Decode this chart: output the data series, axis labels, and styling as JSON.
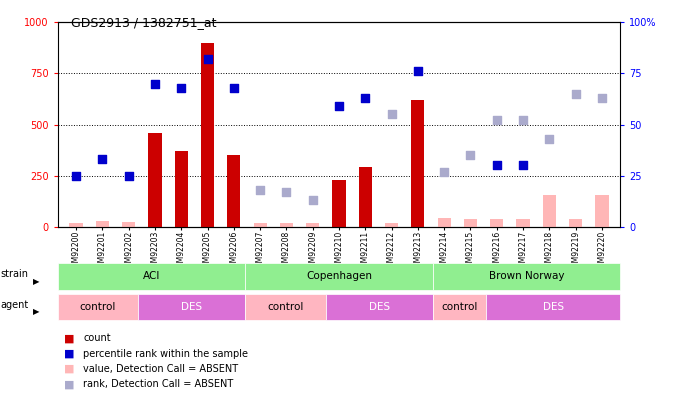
{
  "title": "GDS2913 / 1382751_at",
  "samples": [
    "GSM92200",
    "GSM92201",
    "GSM92202",
    "GSM92203",
    "GSM92204",
    "GSM92205",
    "GSM92206",
    "GSM92207",
    "GSM92208",
    "GSM92209",
    "GSM92210",
    "GSM92211",
    "GSM92212",
    "GSM92213",
    "GSM92214",
    "GSM92215",
    "GSM92216",
    "GSM92217",
    "GSM92218",
    "GSM92219",
    "GSM92220"
  ],
  "count_values": [
    20,
    30,
    25,
    460,
    370,
    900,
    350,
    20,
    20,
    20,
    230,
    290,
    20,
    620,
    45,
    40,
    40,
    40,
    155,
    40,
    155
  ],
  "count_absent": [
    true,
    true,
    true,
    false,
    false,
    false,
    false,
    true,
    true,
    true,
    false,
    false,
    true,
    false,
    true,
    true,
    true,
    true,
    true,
    true,
    true
  ],
  "percentile_values": [
    25,
    33,
    25,
    70,
    68,
    82,
    68,
    null,
    17,
    null,
    59,
    63,
    null,
    76,
    null,
    null,
    30,
    30,
    null,
    null,
    null
  ],
  "percentile_absent": [
    false,
    false,
    false,
    false,
    false,
    false,
    false,
    true,
    true,
    true,
    false,
    false,
    true,
    false,
    true,
    true,
    false,
    false,
    true,
    true,
    true
  ],
  "rank_absent_values": [
    null,
    null,
    null,
    null,
    null,
    null,
    null,
    18,
    null,
    13,
    null,
    null,
    55,
    null,
    27,
    35,
    52,
    52,
    43,
    65,
    63
  ],
  "ylim_left": [
    0,
    1000
  ],
  "ylim_right": [
    0,
    100
  ],
  "yticks_left": [
    0,
    250,
    500,
    750,
    1000
  ],
  "yticks_right": [
    0,
    25,
    50,
    75,
    100
  ],
  "ytick_labels_right": [
    "0",
    "25",
    "50",
    "75",
    "100%"
  ],
  "strain_groups": [
    {
      "label": "ACI",
      "start": 0,
      "end": 6,
      "color": "#90EE90"
    },
    {
      "label": "Copenhagen",
      "start": 7,
      "end": 13,
      "color": "#90EE90"
    },
    {
      "label": "Brown Norway",
      "start": 14,
      "end": 20,
      "color": "#90EE90"
    }
  ],
  "agent_groups": [
    {
      "label": "control",
      "start": 0,
      "end": 2,
      "color": "#FFB6C1"
    },
    {
      "label": "DES",
      "start": 3,
      "end": 6,
      "color": "#DA70D6"
    },
    {
      "label": "control",
      "start": 7,
      "end": 9,
      "color": "#FFB6C1"
    },
    {
      "label": "DES",
      "start": 10,
      "end": 13,
      "color": "#DA70D6"
    },
    {
      "label": "control",
      "start": 14,
      "end": 15,
      "color": "#FFB6C1"
    },
    {
      "label": "DES",
      "start": 16,
      "end": 20,
      "color": "#DA70D6"
    }
  ],
  "bar_color_present": "#CC0000",
  "bar_color_absent": "#FFB6B6",
  "dot_color_present": "#0000CC",
  "dot_color_absent": "#AAAACC",
  "bar_width": 0.5,
  "legend_items": [
    {
      "color": "#CC0000",
      "label": "count"
    },
    {
      "color": "#0000CC",
      "label": "percentile rank within the sample"
    },
    {
      "color": "#FFB6B6",
      "label": "value, Detection Call = ABSENT"
    },
    {
      "color": "#AAAACC",
      "label": "rank, Detection Call = ABSENT"
    }
  ]
}
